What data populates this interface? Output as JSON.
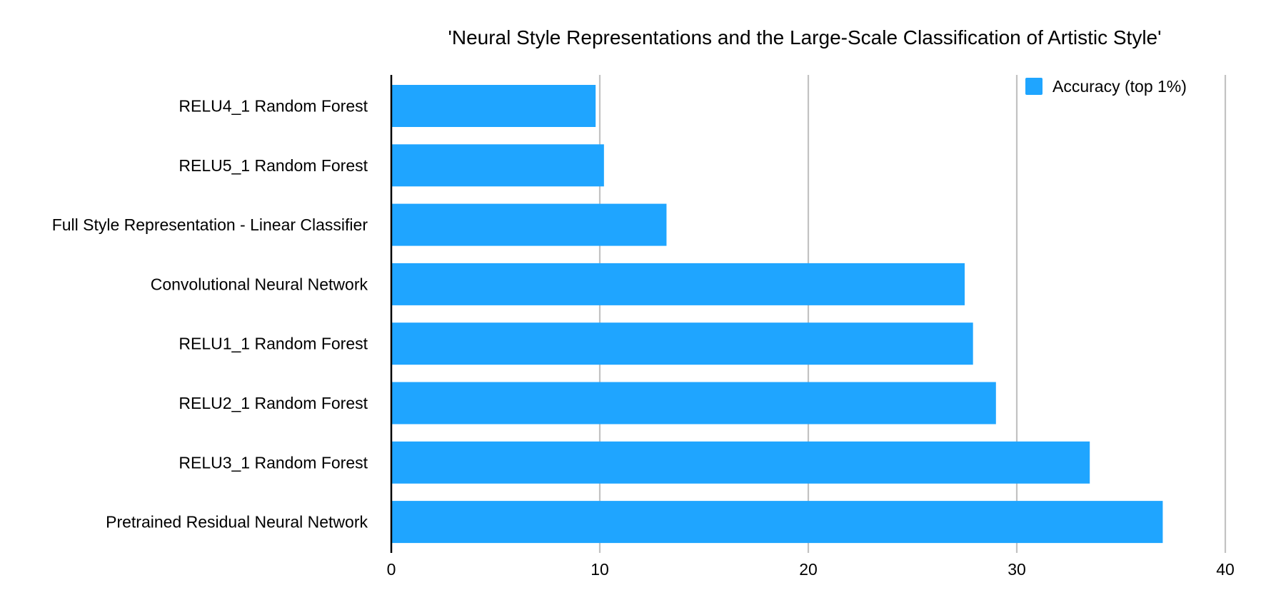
{
  "chart_data": {
    "type": "bar",
    "orientation": "horizontal",
    "title": "'Neural Style Representations and the Large-Scale Classification of Artistic Style'",
    "xlabel": "",
    "ylabel": "",
    "categories": [
      "RELU4_1 Random Forest",
      "RELU5_1 Random Forest",
      "Full Style Representation - Linear Classifier",
      "Convolutional Neural Network",
      "RELU1_1 Random Forest",
      "RELU2_1 Random Forest",
      "RELU3_1 Random Forest",
      "Pretrained Residual Neural Network"
    ],
    "series": [
      {
        "name": "Accuracy (top 1%)",
        "values": [
          9.8,
          10.2,
          13.2,
          27.5,
          27.9,
          29.0,
          33.5,
          37.0
        ],
        "color": "#1fa5ff"
      }
    ],
    "xlim": [
      0,
      40
    ],
    "xticks": [
      0,
      10,
      20,
      30,
      40
    ],
    "grid": "vertical",
    "legend_position": "top-right"
  }
}
